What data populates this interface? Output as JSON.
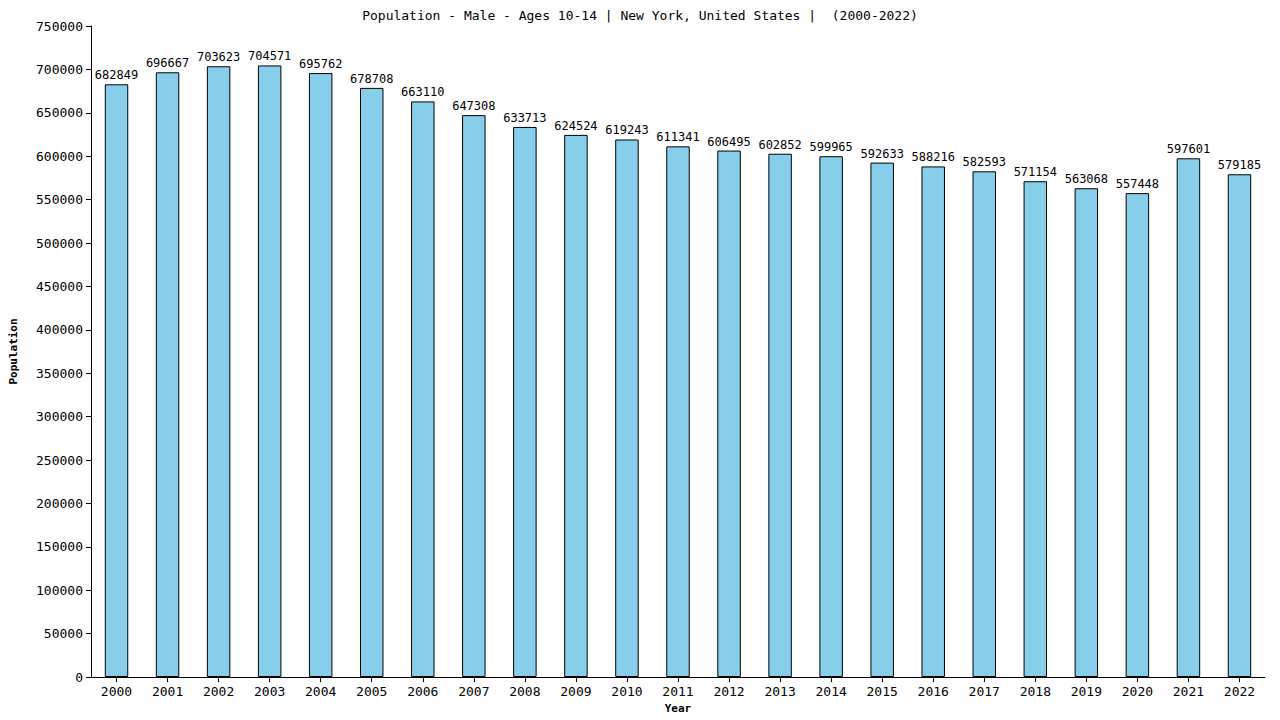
{
  "chart_data": {
    "type": "bar",
    "title": "Population - Male - Ages 10-14 | New York, United States |  (2000-2022)",
    "x_label": "Year",
    "y_label": "Population",
    "categories": [
      "2000",
      "2001",
      "2002",
      "2003",
      "2004",
      "2005",
      "2006",
      "2007",
      "2008",
      "2009",
      "2010",
      "2011",
      "2012",
      "2013",
      "2014",
      "2015",
      "2016",
      "2017",
      "2018",
      "2019",
      "2020",
      "2021",
      "2022"
    ],
    "values": [
      682849,
      696667,
      703623,
      704571,
      695762,
      678708,
      663110,
      647308,
      633713,
      624524,
      619243,
      611341,
      606495,
      602852,
      599965,
      592633,
      588216,
      582593,
      571154,
      563068,
      557448,
      597601,
      579185
    ],
    "color": "#87ceeb",
    "ylim": [
      0,
      750000
    ],
    "yticks": [
      0,
      50000,
      100000,
      150000,
      200000,
      250000,
      300000,
      350000,
      400000,
      450000,
      500000,
      550000,
      600000,
      650000,
      700000,
      750000
    ],
    "grid": false,
    "data_labels": true
  }
}
